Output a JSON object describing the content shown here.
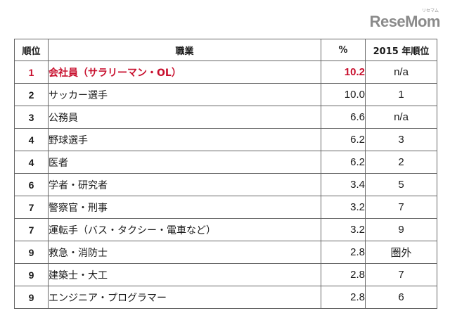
{
  "logo": {
    "text": "ReseMom",
    "kana": "リセマム"
  },
  "table": {
    "headers": {
      "rank": "順位",
      "job": "職業",
      "pct": "%",
      "prev": "2015 年順位"
    },
    "rows": [
      {
        "rank": "1",
        "job": "会社員（サラリーマン・OL）",
        "pct": "10.2",
        "prev": "n/a"
      },
      {
        "rank": "2",
        "job": "サッカー選手",
        "pct": "10.0",
        "prev": "1"
      },
      {
        "rank": "3",
        "job": "公務員",
        "pct": "6.6",
        "prev": "n/a"
      },
      {
        "rank": "4",
        "job": "野球選手",
        "pct": "6.2",
        "prev": "3"
      },
      {
        "rank": "4",
        "job": "医者",
        "pct": "6.2",
        "prev": "2"
      },
      {
        "rank": "6",
        "job": "学者・研究者",
        "pct": "3.4",
        "prev": "5"
      },
      {
        "rank": "7",
        "job": "警察官・刑事",
        "pct": "3.2",
        "prev": "7"
      },
      {
        "rank": "7",
        "job": "運転手（バス・タクシー・電車など）",
        "pct": "3.2",
        "prev": "9"
      },
      {
        "rank": "9",
        "job": "救急・消防士",
        "pct": "2.8",
        "prev": "圏外"
      },
      {
        "rank": "9",
        "job": "建築士・大工",
        "pct": "2.8",
        "prev": "7"
      },
      {
        "rank": "9",
        "job": "エンジニア・プログラマー",
        "pct": "2.8",
        "prev": "6"
      }
    ],
    "highlight_color": "#c8102e"
  }
}
